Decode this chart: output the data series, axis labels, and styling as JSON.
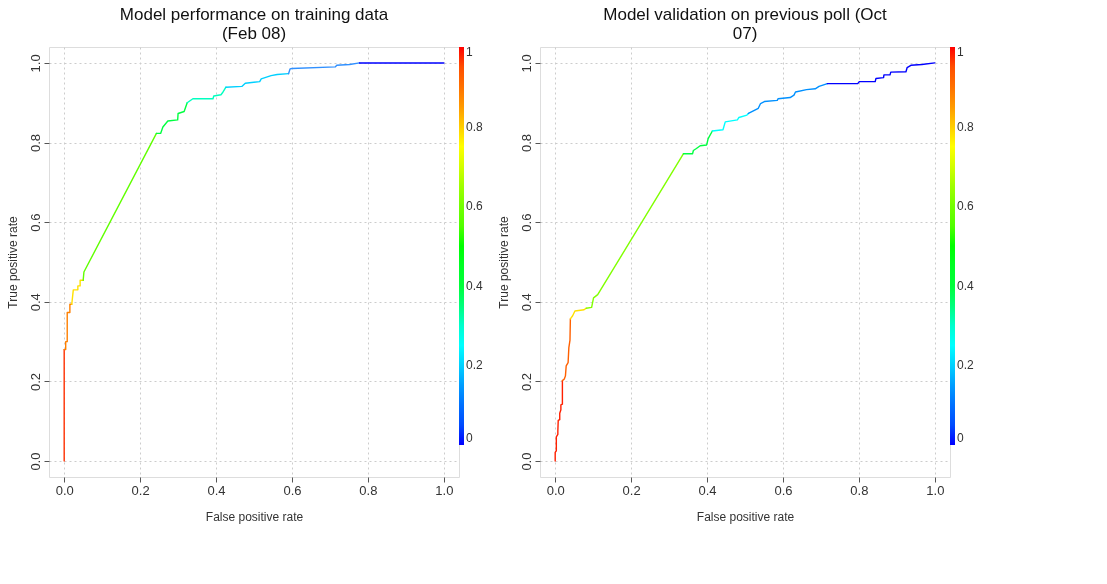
{
  "chart_data": [
    {
      "type": "line",
      "title": "Model performance on training data (Feb 08)",
      "xlabel": "False positive rate",
      "ylabel": "True positive rate",
      "xlim": [
        -0.04,
        1.04
      ],
      "ylim": [
        -0.04,
        1.04
      ],
      "xticks": [
        {
          "value": 0,
          "label": "0.0"
        },
        {
          "value": 0.2,
          "label": "0.2"
        },
        {
          "value": 0.4,
          "label": "0.4"
        },
        {
          "value": 0.6,
          "label": "0.6"
        },
        {
          "value": 0.8,
          "label": "0.8"
        },
        {
          "value": 1,
          "label": "1.0"
        }
      ],
      "yticks": [
        {
          "value": 0,
          "label": "0.0"
        },
        {
          "value": 0.2,
          "label": "0.2"
        },
        {
          "value": 0.4,
          "label": "0.4"
        },
        {
          "value": 0.6,
          "label": "0.6"
        },
        {
          "value": 0.8,
          "label": "0.8"
        },
        {
          "value": 1,
          "label": "1.0"
        }
      ],
      "grid": true,
      "clim": [
        0,
        1
      ],
      "cticks": [
        0,
        0.2,
        0.4,
        0.6,
        0.8,
        1
      ],
      "series": [
        {
          "color": "#ff3000",
          "x": [
            0,
            0
          ],
          "values": [
            0,
            0.28
          ]
        },
        {
          "color": "#ff8000",
          "x": [
            0,
            0.004,
            0.004,
            0.008,
            0.008,
            0.015,
            0.015,
            0.02
          ],
          "values": [
            0.28,
            0.28,
            0.3,
            0.3,
            0.373,
            0.373,
            0.394,
            0.394
          ]
        },
        {
          "color": "#ffe000",
          "x": [
            0.02,
            0.024,
            0.036,
            0.036,
            0.042,
            0.042,
            0.05
          ],
          "values": [
            0.394,
            0.43,
            0.43,
            0.44,
            0.44,
            0.454,
            0.454
          ]
        },
        {
          "color": "#60ff00",
          "x": [
            0.05,
            0.052,
            0.243
          ],
          "values": [
            0.454,
            0.475,
            0.823
          ]
        },
        {
          "color": "#00ff40",
          "x": [
            0.243,
            0.254,
            0.26,
            0.266,
            0.273,
            0.299,
            0.3,
            0.316,
            0.324
          ],
          "values": [
            0.823,
            0.823,
            0.839,
            0.846,
            0.854,
            0.857,
            0.873,
            0.878,
            0.9
          ]
        },
        {
          "color": "#00ffc0",
          "x": [
            0.324,
            0.339,
            0.392,
            0.394,
            0.413,
            0.417,
            0.426
          ],
          "values": [
            0.9,
            0.91,
            0.91,
            0.917,
            0.92,
            0.925,
            0.939
          ]
        },
        {
          "color": "#00d0ff",
          "x": [
            0.426,
            0.468,
            0.477,
            0.515,
            0.519,
            0.545,
            0.561,
            0.591
          ],
          "values": [
            0.939,
            0.941,
            0.949,
            0.953,
            0.96,
            0.968,
            0.971,
            0.973
          ]
        },
        {
          "color": "#3090ff",
          "x": [
            0.591,
            0.595,
            0.6,
            0.714,
            0.718,
            0.752,
            0.778
          ],
          "values": [
            0.973,
            0.985,
            0.986,
            0.99,
            0.994,
            0.996,
            1.0
          ]
        },
        {
          "color": "#0000ff",
          "x": [
            0.778,
            1.0
          ],
          "values": [
            1.0,
            1.0
          ]
        }
      ]
    },
    {
      "type": "line",
      "title": "Model validation on previous poll (Oct 07)",
      "xlabel": "False positive rate",
      "ylabel": "True positive rate",
      "xlim": [
        -0.04,
        1.04
      ],
      "ylim": [
        -0.04,
        1.04
      ],
      "xticks": [
        {
          "value": 0,
          "label": "0.0"
        },
        {
          "value": 0.2,
          "label": "0.2"
        },
        {
          "value": 0.4,
          "label": "0.4"
        },
        {
          "value": 0.6,
          "label": "0.6"
        },
        {
          "value": 0.8,
          "label": "0.8"
        },
        {
          "value": 1,
          "label": "1.0"
        }
      ],
      "yticks": [
        {
          "value": 0,
          "label": "0.0"
        },
        {
          "value": 0.2,
          "label": "0.2"
        },
        {
          "value": 0.4,
          "label": "0.4"
        },
        {
          "value": 0.6,
          "label": "0.6"
        },
        {
          "value": 0.8,
          "label": "0.8"
        },
        {
          "value": 1,
          "label": "1.0"
        }
      ],
      "grid": true,
      "clim": [
        0,
        1
      ],
      "cticks": [
        0,
        0.2,
        0.4,
        0.6,
        0.8,
        1
      ],
      "series": [
        {
          "color": "#ff2000",
          "x": [
            0,
            0,
            0.003,
            0.003,
            0.007,
            0.007,
            0.008,
            0.012,
            0.012,
            0.015,
            0.015,
            0.019,
            0.019
          ],
          "values": [
            0,
            0.022,
            0.026,
            0.061,
            0.067,
            0.075,
            0.102,
            0.104,
            0.12,
            0.129,
            0.141,
            0.143,
            0.202
          ]
        },
        {
          "color": "#ff6000",
          "x": [
            0.019,
            0.024,
            0.027,
            0.029,
            0.034,
            0.036,
            0.039,
            0.04
          ],
          "values": [
            0.202,
            0.206,
            0.214,
            0.239,
            0.247,
            0.285,
            0.304,
            0.357
          ]
        },
        {
          "color": "#ffe000",
          "x": [
            0.04,
            0.046,
            0.052,
            0.076,
            0.082
          ],
          "values": [
            0.357,
            0.365,
            0.377,
            0.38,
            0.384
          ]
        },
        {
          "color": "#80ff00",
          "x": [
            0.082,
            0.096,
            0.101,
            0.112,
            0.338
          ],
          "values": [
            0.384,
            0.386,
            0.41,
            0.418,
            0.772
          ]
        },
        {
          "color": "#00ff40",
          "x": [
            0.338,
            0.362,
            0.364,
            0.372,
            0.382,
            0.399,
            0.403,
            0.414
          ],
          "values": [
            0.772,
            0.772,
            0.78,
            0.785,
            0.792,
            0.794,
            0.81,
            0.829
          ]
        },
        {
          "color": "#00ffff",
          "x": [
            0.414,
            0.442,
            0.448,
            0.48,
            0.484,
            0.505,
            0.509
          ],
          "values": [
            0.829,
            0.832,
            0.852,
            0.857,
            0.863,
            0.869,
            0.873
          ]
        },
        {
          "color": "#0090ff",
          "x": [
            0.509,
            0.535,
            0.541,
            0.551,
            0.585,
            0.587,
            0.619,
            0.629,
            0.633,
            0.662,
            0.685,
            0.695,
            0.717
          ],
          "values": [
            0.873,
            0.886,
            0.898,
            0.903,
            0.906,
            0.91,
            0.913,
            0.919,
            0.927,
            0.933,
            0.935,
            0.941,
            0.948
          ]
        },
        {
          "color": "#0000ff",
          "x": [
            0.717,
            0.797,
            0.801,
            0.843,
            0.845,
            0.865,
            0.866,
            0.882,
            0.884,
            0.924,
            0.927,
            0.937,
            0.966,
            1.0
          ],
          "values": [
            0.948,
            0.948,
            0.953,
            0.953,
            0.961,
            0.963,
            0.97,
            0.97,
            0.977,
            0.978,
            0.988,
            0.994,
            0.996,
            1.0
          ]
        }
      ]
    }
  ]
}
